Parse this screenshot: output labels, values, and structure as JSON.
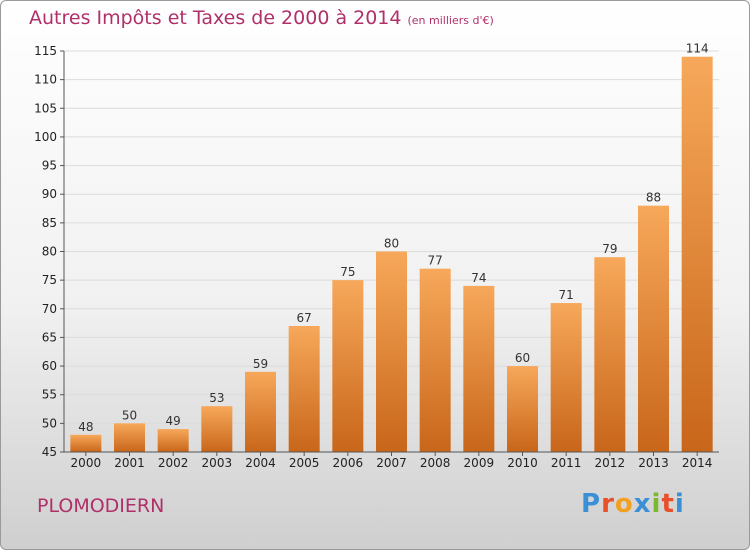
{
  "title": "Autres Impôts et Taxes de 2000 à 2014",
  "unit": "(en milliers d'€)",
  "commune": "PLOMODIERN",
  "logo": "Proxiti",
  "logo_colors": [
    "#3a8fd6",
    "#e8502a",
    "#f2a020",
    "#3a8fd6",
    "#7ab82e",
    "#e8502a",
    "#3a8fd6"
  ],
  "colors": {
    "title": "#b0306a",
    "bar_top": "#f7a85a",
    "bar_bottom": "#c8661a",
    "grid": "#dcdcdc"
  },
  "chart_data": {
    "type": "bar",
    "categories": [
      "2000",
      "2001",
      "2002",
      "2003",
      "2004",
      "2005",
      "2006",
      "2007",
      "2008",
      "2009",
      "2010",
      "2011",
      "2012",
      "2013",
      "2014"
    ],
    "values": [
      48,
      50,
      49,
      53,
      59,
      67,
      75,
      80,
      77,
      74,
      60,
      71,
      79,
      88,
      114
    ],
    "title": "Autres Impôts et Taxes de 2000 à 2014",
    "xlabel": "",
    "ylabel": "",
    "ylim": [
      45,
      115
    ],
    "yticks": [
      45,
      50,
      55,
      60,
      65,
      70,
      75,
      80,
      85,
      90,
      95,
      100,
      105,
      110,
      115
    ],
    "grid": true,
    "data_labels": true
  }
}
